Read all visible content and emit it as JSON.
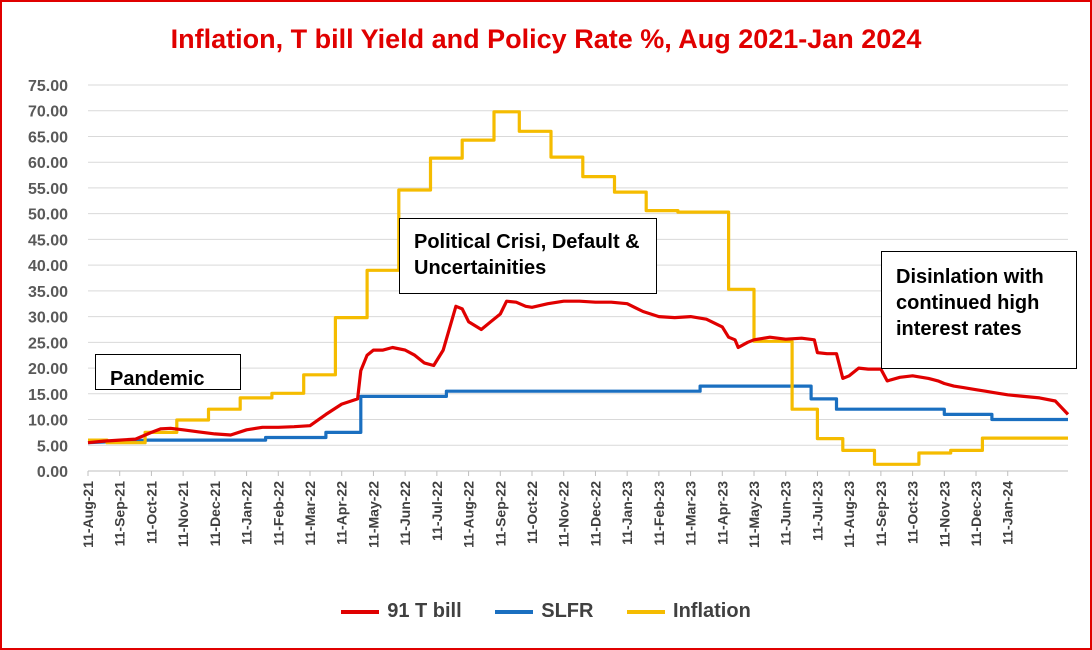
{
  "chart_data": {
    "type": "line",
    "title": "Inflation, T bill Yield and Policy Rate %, Aug 2021-Jan 2024",
    "xlabel": "",
    "ylabel": "",
    "ylim": [
      0,
      75
    ],
    "yticks": [
      "0.00",
      "5.00",
      "10.00",
      "15.00",
      "20.00",
      "25.00",
      "30.00",
      "35.00",
      "40.00",
      "45.00",
      "50.00",
      "55.00",
      "60.00",
      "65.00",
      "70.00",
      "75.00"
    ],
    "xticks": [
      "11-Aug-21",
      "11-Sep-21",
      "11-Oct-21",
      "11-Nov-21",
      "11-Dec-21",
      "11-Jan-22",
      "11-Feb-22",
      "11-Mar-22",
      "11-Apr-22",
      "11-May-22",
      "11-Jun-22",
      "11-Jul-22",
      "11-Aug-22",
      "11-Sep-22",
      "11-Oct-22",
      "11-Nov-22",
      "11-Dec-22",
      "11-Jan-23",
      "11-Feb-23",
      "11-Mar-23",
      "11-Apr-23",
      "11-May-23",
      "11-Jun-23",
      "11-Jul-23",
      "11-Aug-23",
      "11-Sep-23",
      "11-Oct-23",
      "11-Nov-23",
      "11-Dec-23",
      "11-Jan-24"
    ],
    "x_end": 30.9,
    "grid": true,
    "legend_placement": "bottom",
    "series": [
      {
        "name": "91 T bill",
        "color": "#e00000",
        "points": [
          [
            0,
            5.5
          ],
          [
            0.5,
            5.8
          ],
          [
            1,
            6
          ],
          [
            1.5,
            6.2
          ],
          [
            2,
            7.5
          ],
          [
            2.3,
            8.2
          ],
          [
            2.6,
            8.3
          ],
          [
            3,
            8
          ],
          [
            3.5,
            7.6
          ],
          [
            4,
            7.2
          ],
          [
            4.5,
            7
          ],
          [
            5,
            8
          ],
          [
            5.5,
            8.5
          ],
          [
            6,
            8.5
          ],
          [
            6.5,
            8.6
          ],
          [
            7,
            8.8
          ],
          [
            7.5,
            11
          ],
          [
            8,
            13
          ],
          [
            8.5,
            14
          ],
          [
            8.6,
            19.5
          ],
          [
            8.8,
            22.5
          ],
          [
            9,
            23.5
          ],
          [
            9.3,
            23.5
          ],
          [
            9.6,
            24
          ],
          [
            10,
            23.5
          ],
          [
            10.3,
            22.5
          ],
          [
            10.6,
            21
          ],
          [
            10.9,
            20.5
          ],
          [
            11.2,
            23.5
          ],
          [
            11.6,
            32
          ],
          [
            11.8,
            31.5
          ],
          [
            12,
            29
          ],
          [
            12.4,
            27.5
          ],
          [
            12.7,
            29
          ],
          [
            13,
            30.5
          ],
          [
            13.2,
            33
          ],
          [
            13.5,
            32.8
          ],
          [
            13.8,
            32
          ],
          [
            14,
            31.8
          ],
          [
            14.5,
            32.5
          ],
          [
            15,
            33
          ],
          [
            15.5,
            33
          ],
          [
            16,
            32.8
          ],
          [
            16.5,
            32.8
          ],
          [
            17,
            32.5
          ],
          [
            17.5,
            31
          ],
          [
            18,
            30
          ],
          [
            18.5,
            29.8
          ],
          [
            19,
            30
          ],
          [
            19.5,
            29.5
          ],
          [
            20,
            28
          ],
          [
            20.2,
            26
          ],
          [
            20.4,
            25.5
          ],
          [
            20.5,
            24
          ],
          [
            20.8,
            25
          ],
          [
            21,
            25.5
          ],
          [
            21.5,
            26
          ],
          [
            22,
            25.6
          ],
          [
            22.5,
            25.8
          ],
          [
            22.9,
            25.5
          ],
          [
            23,
            23
          ],
          [
            23.3,
            22.8
          ],
          [
            23.6,
            22.8
          ],
          [
            23.8,
            18
          ],
          [
            24,
            18.5
          ],
          [
            24.3,
            20
          ],
          [
            24.6,
            19.8
          ],
          [
            25,
            19.8
          ],
          [
            25.2,
            17.5
          ],
          [
            25.6,
            18.2
          ],
          [
            26,
            18.5
          ],
          [
            26.5,
            18
          ],
          [
            26.8,
            17.5
          ],
          [
            27,
            17
          ],
          [
            27.3,
            16.5
          ],
          [
            27.6,
            16.2
          ],
          [
            28,
            15.8
          ],
          [
            28.3,
            15.5
          ],
          [
            28.6,
            15.2
          ],
          [
            29,
            14.8
          ],
          [
            29.5,
            14.5
          ],
          [
            30,
            14.2
          ],
          [
            30.5,
            13.6
          ],
          [
            30.9,
            11
          ]
        ]
      },
      {
        "name": "SLFR",
        "color": "#1a6fc0",
        "points": [
          [
            0,
            5.5
          ],
          [
            1.9,
            6
          ],
          [
            5.6,
            6
          ],
          [
            5.6,
            6.5
          ],
          [
            7.5,
            6.5
          ],
          [
            7.5,
            7.5
          ],
          [
            8.6,
            7.5
          ],
          [
            8.6,
            14.5
          ],
          [
            11.3,
            14.5
          ],
          [
            11.3,
            15.5
          ],
          [
            19.3,
            15.5
          ],
          [
            19.3,
            16.5
          ],
          [
            22.8,
            16.5
          ],
          [
            22.8,
            14
          ],
          [
            23.6,
            14
          ],
          [
            23.6,
            12
          ],
          [
            27,
            12
          ],
          [
            27,
            11
          ],
          [
            28.5,
            11
          ],
          [
            28.5,
            10
          ],
          [
            30.9,
            10
          ]
        ]
      },
      {
        "name": "Inflation",
        "color": "#f5bc00",
        "points": [
          [
            0,
            6
          ],
          [
            0.6,
            6
          ],
          [
            0.6,
            5.5
          ],
          [
            1.8,
            5.5
          ],
          [
            1.8,
            7.5
          ],
          [
            2.8,
            7.5
          ],
          [
            2.8,
            9.9
          ],
          [
            3.8,
            9.9
          ],
          [
            3.8,
            12
          ],
          [
            4.8,
            12
          ],
          [
            4.8,
            14.2
          ],
          [
            5.8,
            14.2
          ],
          [
            5.8,
            15.1
          ],
          [
            6.8,
            15.1
          ],
          [
            6.8,
            18.7
          ],
          [
            7.8,
            18.7
          ],
          [
            7.8,
            29.8
          ],
          [
            8.8,
            29.8
          ],
          [
            8.8,
            39
          ],
          [
            9.8,
            39
          ],
          [
            9.8,
            54.6
          ],
          [
            10.8,
            54.6
          ],
          [
            10.8,
            60.8
          ],
          [
            11.8,
            60.8
          ],
          [
            11.8,
            64.3
          ],
          [
            12.8,
            64.3
          ],
          [
            12.8,
            69.8
          ],
          [
            13.6,
            69.8
          ],
          [
            13.6,
            66
          ],
          [
            14.6,
            66
          ],
          [
            14.6,
            61
          ],
          [
            15.6,
            61
          ],
          [
            15.6,
            57.2
          ],
          [
            16.6,
            57.2
          ],
          [
            16.6,
            54.2
          ],
          [
            17.6,
            54.2
          ],
          [
            17.6,
            50.6
          ],
          [
            18.6,
            50.6
          ],
          [
            18.6,
            50.3
          ],
          [
            19.6,
            50.3
          ],
          [
            20.2,
            50.3
          ],
          [
            20.2,
            35.3
          ],
          [
            21,
            35.3
          ],
          [
            21,
            25.2
          ],
          [
            22.2,
            25.2
          ],
          [
            22.2,
            12
          ],
          [
            23,
            12
          ],
          [
            23,
            6.3
          ],
          [
            23.8,
            6.3
          ],
          [
            23.8,
            4
          ],
          [
            24.8,
            4
          ],
          [
            24.8,
            1.3
          ],
          [
            26.2,
            1.3
          ],
          [
            26.2,
            3.5
          ],
          [
            27.2,
            3.5
          ],
          [
            27.2,
            4
          ],
          [
            28.2,
            4
          ],
          [
            28.2,
            6.4
          ],
          [
            30.9,
            6.4
          ]
        ]
      }
    ],
    "annotations": [
      {
        "text": "Pandemic"
      },
      {
        "text": "Political Crisi, Default & Uncertainities"
      },
      {
        "text": "Disinlation with continued high interest rates"
      }
    ]
  }
}
